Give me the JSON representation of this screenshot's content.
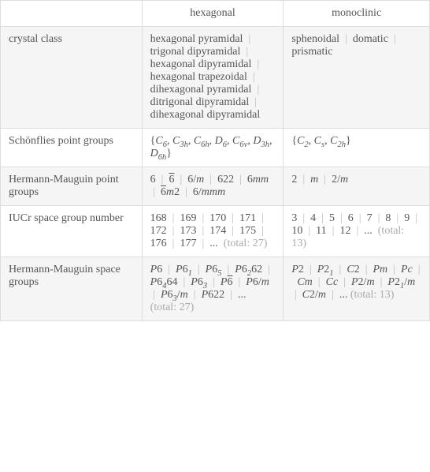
{
  "headers": {
    "empty": "",
    "hexagonal": "hexagonal",
    "monoclinic": "monoclinic"
  },
  "rows": {
    "crystal_class": {
      "label": "crystal class",
      "hex_items": [
        "hexagonal pyramidal",
        "trigonal dipyramidal",
        "hexagonal dipyramidal",
        "hexagonal trapezoidal",
        "dihexagonal pyramidal",
        "ditrigonal dipyramidal",
        "dihexagonal dipyramidal"
      ],
      "mono_items": [
        "sphenoidal",
        "domatic",
        "prismatic"
      ]
    },
    "schonflies": {
      "label": "Schönflies point groups",
      "hex_html": "{<span class='italic'>C</span><span class='sub'>6</span>, <span class='italic'>C</span><span class='sub'>3h</span>, <span class='italic'>C</span><span class='sub'>6h</span>, <span class='italic'>D</span><span class='sub'>6</span>, <span class='italic'>C</span><span class='sub'>6v</span>, <span class='italic'>D</span><span class='sub'>3h</span>, <span class='italic'>D</span><span class='sub'>6h</span>}",
      "mono_html": "{<span class='italic'>C</span><span class='sub'>2</span>, <span class='italic'>C</span><span class='sub'>s</span>, <span class='italic'>C</span><span class='sub'>2h</span>}"
    },
    "hermann_point": {
      "label": "Hermann-Mauguin point groups",
      "hex_html": "6 &nbsp;<span class='sep'>|</span>&nbsp; <span class='overline'>6</span> &nbsp;<span class='sep'>|</span>&nbsp; 6/<span class='italic'>m</span> &nbsp;<span class='sep'>|</span>&nbsp; 622 &nbsp;<span class='sep'>|</span>&nbsp; 6<span class='italic'>mm</span> &nbsp;<span class='sep'>|</span>&nbsp; <span class='overline'>6</span><span class='italic'>m</span>2 &nbsp;<span class='sep'>|</span>&nbsp; 6/<span class='italic'>mmm</span>",
      "mono_html": "2 &nbsp;<span class='sep'>|</span>&nbsp; <span class='italic'>m</span> &nbsp;<span class='sep'>|</span>&nbsp; 2/<span class='italic'>m</span>"
    },
    "iucr": {
      "label": "IUCr space group number",
      "hex_html": "168 &nbsp;<span class='sep'>|</span>&nbsp; 169 &nbsp;<span class='sep'>|</span>&nbsp; 170 &nbsp;<span class='sep'>|</span>&nbsp; 171 &nbsp;<span class='sep'>|</span>&nbsp; 172 &nbsp;<span class='sep'>|</span>&nbsp; 173 &nbsp;<span class='sep'>|</span>&nbsp; 174 &nbsp;<span class='sep'>|</span>&nbsp; 175 &nbsp;<span class='sep'>|</span>&nbsp; 176 &nbsp;<span class='sep'>|</span>&nbsp; 177 &nbsp;<span class='sep'>|</span>&nbsp; ... &nbsp;<span class='gray'>(total: 27)</span>",
      "mono_html": "3 &nbsp;<span class='sep'>|</span>&nbsp; 4 &nbsp;<span class='sep'>|</span>&nbsp; 5 &nbsp;<span class='sep'>|</span>&nbsp; 6 &nbsp;<span class='sep'>|</span>&nbsp; 7 &nbsp;<span class='sep'>|</span>&nbsp; 8 &nbsp;<span class='sep'>|</span>&nbsp; 9 &nbsp;<span class='sep'>|</span>&nbsp; 10 &nbsp;<span class='sep'>|</span>&nbsp; 11 &nbsp;<span class='sep'>|</span>&nbsp; 12 &nbsp;<span class='sep'>|</span>&nbsp; ... &nbsp;<span class='gray'>(total: 13)</span>"
    },
    "hermann_space": {
      "label": "Hermann-Mauguin space groups",
      "hex_html": "<span class='italic'>P</span>6 &nbsp;<span class='sep'>|</span>&nbsp; <span class='italic'>P</span>6<span class='sub'>1</span> &nbsp;<span class='sep'>|</span>&nbsp; <span class='italic'>P</span>6<span class='sub'>5</span> &nbsp;<span class='sep'>|</span>&nbsp; <span class='italic'>P</span>6<span class='sub'>2</span>62 &nbsp;<span class='sep'>|</span>&nbsp; <span class='italic'>P</span>6<span class='sub'>4</span>64 &nbsp;<span class='sep'>|</span>&nbsp; <span class='italic'>P</span>6<span class='sub'>3</span> &nbsp;<span class='sep'>|</span>&nbsp; <span class='italic'>P</span><span class='overline'>6</span> &nbsp;<span class='sep'>|</span>&nbsp; <span class='italic'>P</span>6/<span class='italic'>m</span> &nbsp;<span class='sep'>|</span>&nbsp; <span class='italic'>P</span>6<span class='sub'>3</span>/<span class='italic'>m</span> &nbsp;<span class='sep'>|</span>&nbsp; <span class='italic'>P</span>622 &nbsp;<span class='sep'>|</span>&nbsp; ... <span class='gray'>(total: 27)</span>",
      "mono_html": "<span class='italic'>P</span>2 &nbsp;<span class='sep'>|</span>&nbsp; <span class='italic'>P</span>2<span class='sub'>1</span> &nbsp;<span class='sep'>|</span>&nbsp; <span class='italic'>C</span>2 &nbsp;<span class='sep'>|</span>&nbsp; <span class='italic'>Pm</span> &nbsp;<span class='sep'>|</span>&nbsp; <span class='italic'>Pc</span> &nbsp;<span class='sep'>|</span>&nbsp; <span class='italic'>Cm</span> &nbsp;<span class='sep'>|</span>&nbsp; <span class='italic'>Cc</span> &nbsp;<span class='sep'>|</span>&nbsp; <span class='italic'>P</span>2/<span class='italic'>m</span> &nbsp;<span class='sep'>|</span>&nbsp; <span class='italic'>P</span>2<span class='sub'>1</span>/<span class='italic'>m</span> &nbsp;<span class='sep'>|</span>&nbsp; <span class='italic'>C</span>2/<span class='italic'>m</span> &nbsp;<span class='sep'>|</span>&nbsp; ... <span class='gray'>(total: 13)</span>"
    }
  },
  "separator": " | ",
  "colors": {
    "border": "#dddddd",
    "odd_row": "#f5f5f5",
    "even_row": "#ffffff",
    "text": "#555555",
    "sep": "#bbbbbb",
    "gray": "#aaaaaa"
  }
}
